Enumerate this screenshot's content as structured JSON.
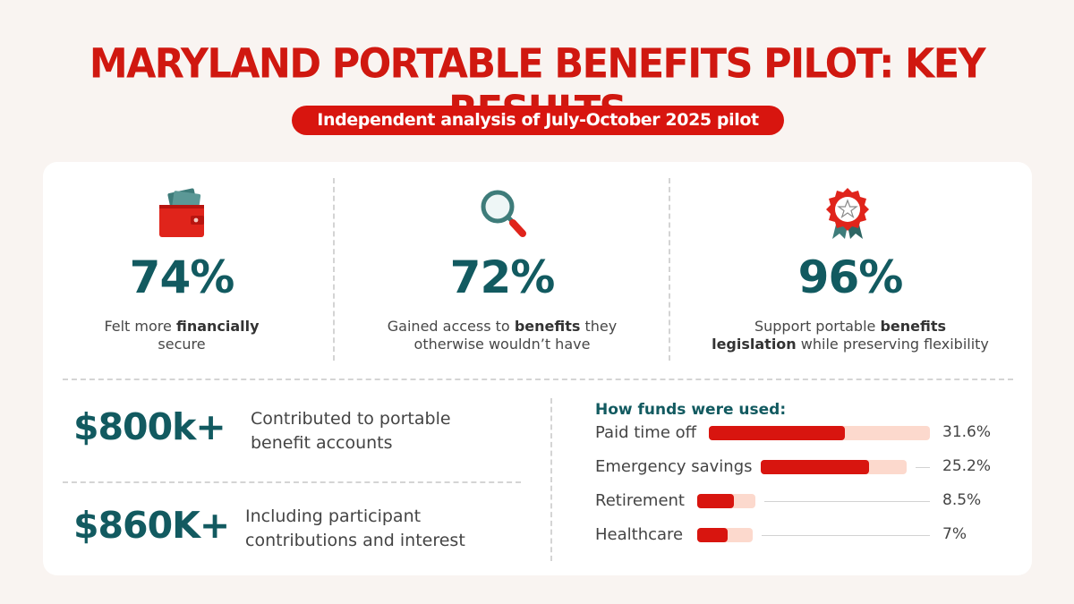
{
  "title": "MARYLAND PORTABLE BENEFITS PILOT: KEY RESULTS",
  "subtitle": "Independent analysis of July-October 2025 pilot",
  "stats": [
    {
      "icon": "wallet-icon",
      "value": "74%",
      "desc_plain_1": "Felt more ",
      "desc_bold_1": "financially",
      "desc_plain_2": "secure",
      "desc_bold_2": ""
    },
    {
      "icon": "magnifying-glass-icon",
      "value": "72%",
      "desc_plain_1": "Gained access to ",
      "desc_bold_1": "benefits",
      "desc_plain_1b": " they",
      "desc_plain_2": "otherwise wouldn’t have",
      "desc_bold_2": ""
    },
    {
      "icon": "award-ribbon-icon",
      "value": "96%",
      "desc_plain_1": "Support portable ",
      "desc_bold_1": "benefits",
      "desc_bold_2": "legislation",
      "desc_plain_2": " while preserving flexibility"
    }
  ],
  "totals": [
    {
      "value": "$800k+",
      "desc_1": "Contributed to portable",
      "desc_2": "benefit accounts"
    },
    {
      "value": "$860K+",
      "desc_1": "Including participant",
      "desc_2": "contributions and interest"
    }
  ],
  "colors": {
    "title": "#d01810",
    "accent": "#d8150f",
    "teal": "#125a60",
    "bar_track": "#fcd9cd"
  },
  "chart_data": {
    "type": "bar",
    "title": "How funds were used:",
    "categories": [
      "Paid time off",
      "Emergency savings",
      "Retirement",
      "Healthcare"
    ],
    "values": [
      31.6,
      25.2,
      8.5,
      7
    ],
    "value_labels": [
      "31.6%",
      "25.2%",
      "8.5%",
      "7%"
    ],
    "unit": "%",
    "orientation": "horizontal"
  }
}
